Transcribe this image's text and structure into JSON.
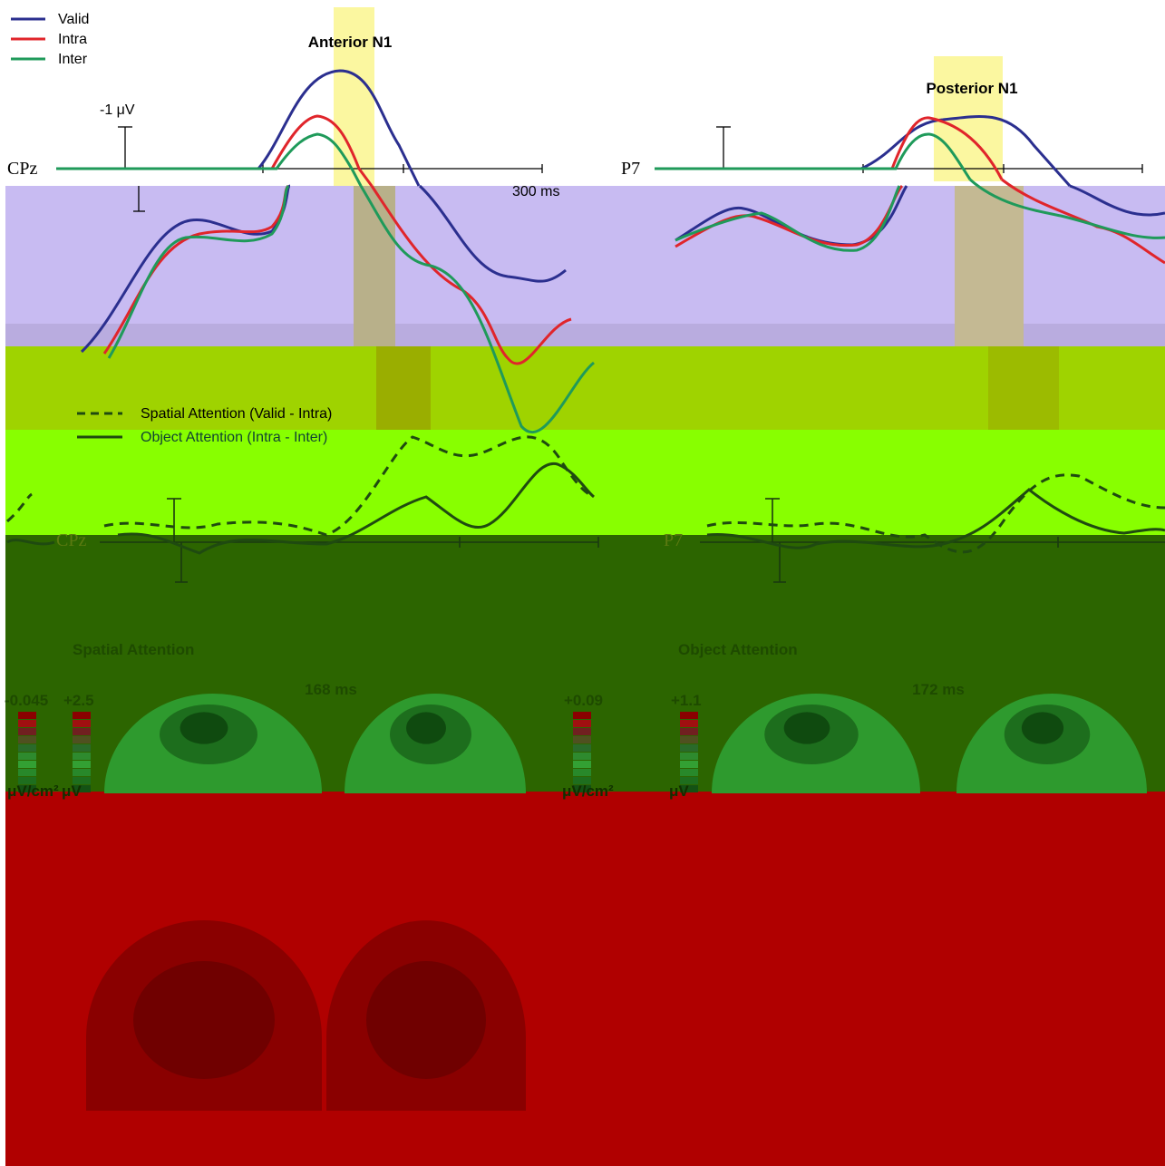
{
  "legend": [
    {
      "label": "Valid",
      "color": "#2b2f8f"
    },
    {
      "label": "Intra",
      "color": "#e0252b"
    },
    {
      "label": "Inter",
      "color": "#1f9a5a"
    }
  ],
  "top_panels": [
    {
      "channel": "CPz",
      "component": "Anterior N1"
    },
    {
      "channel": "P7",
      "component": "Posterior N1"
    }
  ],
  "amplitude_scale": "-1 μV",
  "time_scale": "300 ms",
  "difference_legend": [
    "Spatial Attention (Valid - Intra)",
    "Object Attention (Intra - Inter)"
  ],
  "difference_panels": [
    {
      "channel": "CPz"
    },
    {
      "channel": "P7"
    }
  ],
  "topography": [
    {
      "title": "Spatial Attention",
      "latency": "168 ms",
      "scales": [
        {
          "max": "-0.045",
          "unit": "μV/cm²"
        },
        {
          "max": "+2.5",
          "unit": "μV"
        },
        {
          "max": "+0.09",
          "unit": "μV/cm²"
        }
      ]
    },
    {
      "title": "Object Attention",
      "latency": "172 ms",
      "scales": [
        {
          "max": "+1.1",
          "unit": "μV"
        }
      ]
    }
  ]
}
